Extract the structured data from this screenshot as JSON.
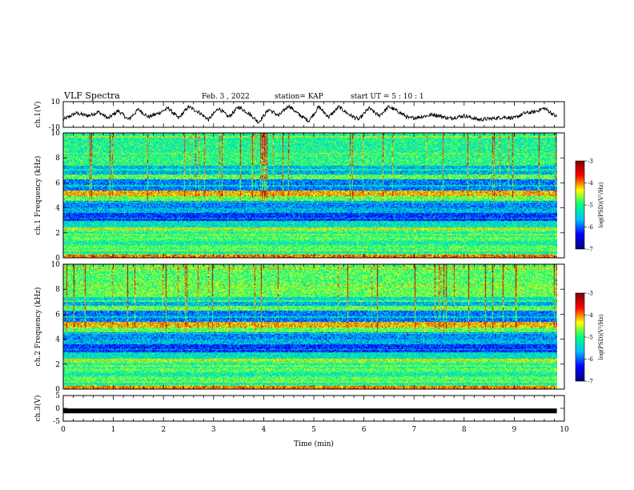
{
  "header": {
    "title": "VLF Spectra",
    "date": "Feb. 3 , 2022",
    "station": "station= KAP",
    "start": "start UT = 5 : 10 : 1"
  },
  "chart_data": [
    {
      "type": "line",
      "panel": "ch1-voltage",
      "ylabel": "ch.1(V)",
      "ylim": [
        -10,
        10
      ],
      "yticks": [
        "10",
        "-10"
      ],
      "xlim": [
        0,
        10
      ],
      "x_end": 9.85,
      "series": [
        {
          "x": [
            0,
            0.25,
            0.5,
            0.7,
            0.9,
            1.1,
            1.3,
            1.5,
            1.7,
            1.9,
            2.1,
            2.3,
            2.5,
            2.7,
            2.9,
            3.1,
            3.3,
            3.5,
            3.7,
            3.9,
            4.1,
            4.3,
            4.5,
            4.7,
            4.9,
            5.1,
            5.3,
            5.5,
            5.7,
            5.9,
            6.1,
            6.3,
            6.5,
            6.7,
            6.9,
            7.1,
            7.4,
            7.7,
            8.0,
            8.3,
            8.6,
            8.8,
            9.0,
            9.2,
            9.4,
            9.6,
            9.85
          ],
          "values": [
            -4,
            1,
            -1,
            2,
            -3,
            3,
            -4,
            4,
            -2,
            1,
            5,
            -3,
            6,
            2,
            -4,
            5,
            -2,
            6,
            1,
            -6,
            4,
            -1,
            7,
            0,
            -5,
            6,
            -2,
            6,
            0,
            -4,
            5,
            -1,
            6,
            2,
            -3,
            -2,
            0,
            -3,
            -1,
            -4,
            -3,
            -2,
            -3,
            1,
            2,
            5,
            -2
          ]
        }
      ]
    },
    {
      "type": "heatmap",
      "panel": "ch1-spectrogram",
      "ylabel": "ch.1 Frequency (kHz)",
      "ylim": [
        0,
        10
      ],
      "yticks": [
        "0",
        "2",
        "4",
        "6",
        "8",
        "10"
      ],
      "xlim": [
        0,
        10
      ],
      "x_end": 9.85,
      "colorbar": {
        "label": "log(PSD)(V²/Hz)",
        "range": [
          -7,
          -3
        ],
        "ticks": [
          "-3",
          "-4",
          "-5",
          "-6",
          "-7"
        ]
      }
    },
    {
      "type": "heatmap",
      "panel": "ch2-spectrogram",
      "ylabel": "ch.2 Frequency (kHz)",
      "ylim": [
        0,
        10
      ],
      "yticks": [
        "0",
        "2",
        "4",
        "6",
        "8",
        "10"
      ],
      "xlim": [
        0,
        10
      ],
      "x_end": 9.85,
      "colorbar": {
        "label": "log(PSD)(V²/Hz)",
        "range": [
          -7,
          -3
        ],
        "ticks": [
          "-3",
          "-4",
          "-5",
          "-6",
          "-7"
        ]
      }
    },
    {
      "type": "line",
      "panel": "ch3-voltage",
      "ylabel": "ch.3(V)",
      "ylim": [
        -5,
        5
      ],
      "yticks": [
        "5",
        "0",
        "-5"
      ],
      "xlim": [
        0,
        10
      ],
      "x_end": 9.85,
      "series": [
        {
          "x": [
            0,
            9.85
          ],
          "values": [
            -1,
            -1
          ]
        }
      ]
    }
  ],
  "xaxis": {
    "label": "Time (min)",
    "ticks": [
      "0",
      "1",
      "2",
      "3",
      "4",
      "5",
      "6",
      "7",
      "8",
      "9",
      "10"
    ]
  },
  "colors": {
    "colormap": [
      "#000080",
      "#0000ff",
      "#00bfff",
      "#00ff80",
      "#ffff00",
      "#ff0000",
      "#800000"
    ],
    "trace": "#000000"
  }
}
